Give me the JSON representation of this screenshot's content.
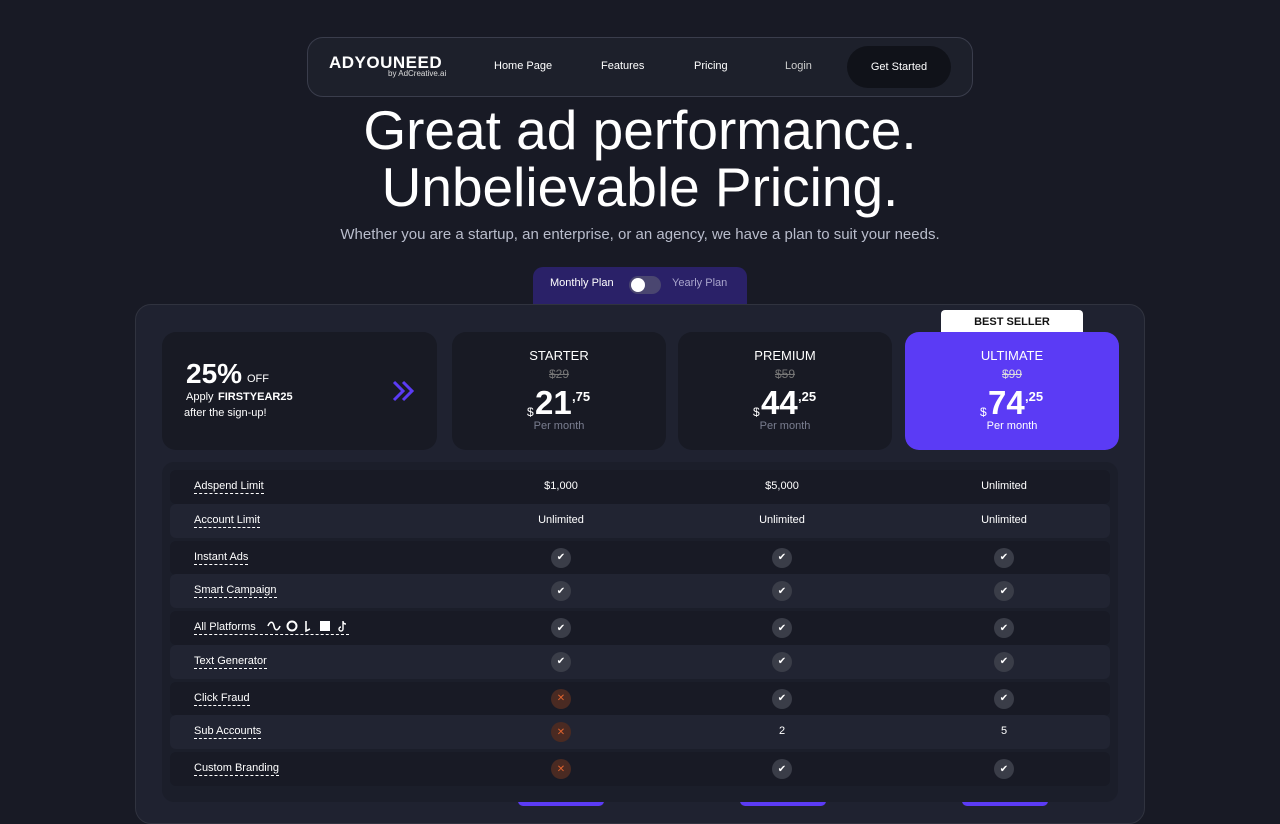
{
  "nav": {
    "logo": "ADYOUNEED",
    "logo_sub": "by AdCreative.ai",
    "links": [
      "Home Page",
      "Features",
      "Pricing"
    ],
    "login": "Login",
    "cta": "Get Started"
  },
  "hero": {
    "title_lines": [
      "Great ad performance.",
      "Unbelievable Pricing."
    ],
    "subtitle": "Whether you are a startup, an enterprise, or an agency, we have a plan to suit your needs."
  },
  "toggle": {
    "monthly": "Monthly Plan",
    "yearly": "Yearly Plan"
  },
  "promo": {
    "discount": "25%",
    "off": "OFF",
    "apply": "Apply",
    "code": "FIRSTYEAR25",
    "after": "after the sign-up!"
  },
  "badge": "BEST SELLER",
  "plans": [
    {
      "name": "STARTER",
      "old_price": "$29",
      "currency": "$",
      "price": "21",
      "cents": ",75",
      "period": "Per month"
    },
    {
      "name": "PREMIUM",
      "old_price": "$59",
      "currency": "$",
      "price": "44",
      "cents": ",25",
      "period": "Per month"
    },
    {
      "name": "ULTIMATE",
      "old_price": "$99",
      "currency": "$",
      "price": "74",
      "cents": ",25",
      "period": "Per month"
    }
  ],
  "features": [
    {
      "label": "Adspend Limit",
      "values": [
        "$1,000",
        "$5,000",
        "Unlimited"
      ]
    },
    {
      "label": "Account Limit",
      "values": [
        "Unlimited",
        "Unlimited",
        "Unlimited"
      ]
    },
    {
      "label": "Instant Ads",
      "values": [
        true,
        true,
        true
      ]
    },
    {
      "label": "Smart Campaign",
      "values": [
        true,
        true,
        true
      ]
    },
    {
      "label": "All Platforms",
      "values": [
        true,
        true,
        true
      ]
    },
    {
      "label": "Text Generator",
      "values": [
        true,
        true,
        true
      ]
    },
    {
      "label": "Click Fraud",
      "values": [
        false,
        true,
        true
      ]
    },
    {
      "label": "Sub Accounts",
      "values": [
        false,
        2,
        5
      ]
    },
    {
      "label": "Custom Branding",
      "values": [
        false,
        true,
        true
      ]
    }
  ]
}
